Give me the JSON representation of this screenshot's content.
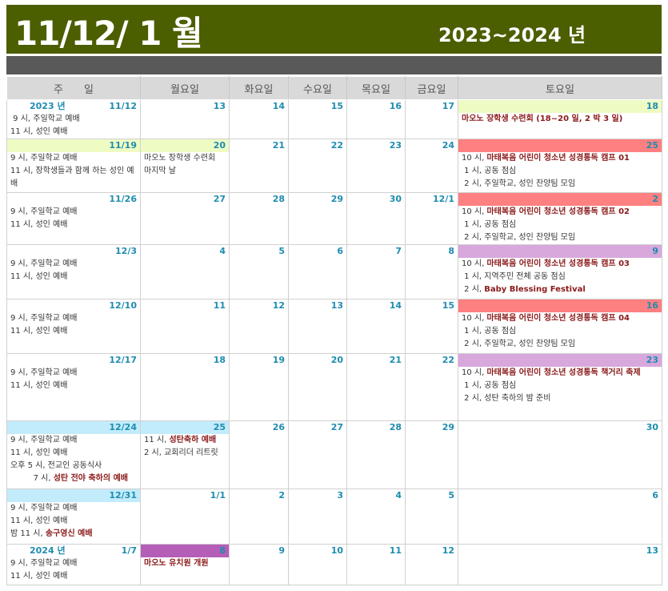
{
  "header": {
    "title": "11/12/ 1 월",
    "years": "2023~2024 년"
  },
  "colors": {
    "title_bg": "#4b5e00",
    "bar": "#595959",
    "date": "#1f8cb0",
    "event": "#8b1a1a",
    "yellow": "#eefcc4",
    "red": "#ff8080",
    "purple": "#d8a8dc",
    "blue": "#c2ecfb",
    "magenta": "#b45eb8"
  },
  "days": [
    "주　　일",
    "월요일",
    "화요일",
    "수요일",
    "목요일",
    "금요일",
    "토요일"
  ],
  "weeks": [
    {
      "h": 46,
      "cells": [
        {
          "date": "11/12",
          "label": "2023 년",
          "lines": [
            {
              "pre": " 9 시, 주일학교 예배"
            },
            {
              "pre": "11 시, 성인 예배"
            }
          ]
        },
        {
          "date": "13"
        },
        {
          "date": "14"
        },
        {
          "date": "15"
        },
        {
          "date": "16"
        },
        {
          "date": "17"
        },
        {
          "date": "18",
          "hl": "yellow",
          "lines": [
            {
              "pre": "",
              "em": "마오노 장학생 수련회 (18~20 일, 2 박 3 일)"
            }
          ]
        }
      ]
    },
    {
      "h": 67,
      "cells": [
        {
          "date": "11/19",
          "hl": "yellow",
          "lines": [
            {
              "pre": "9 시, 주일학교 예배"
            },
            {
              "pre": "11 시, 장학생들과 함께 하는 성인 예배",
              "wrap": true
            }
          ]
        },
        {
          "date": "20",
          "hl": "yellow",
          "lines": [
            {
              "pre": "마오노 장학생 수련회"
            },
            {
              "pre": "마지막 날"
            }
          ]
        },
        {
          "date": "21"
        },
        {
          "date": "22"
        },
        {
          "date": "23"
        },
        {
          "date": "24"
        },
        {
          "date": "25",
          "hl": "red",
          "lines": [
            {
              "pre": "10 시, ",
              "em": "마태복음 어린이 청소년 성경통독 캠프 01"
            },
            {
              "pre": " 1 시, 공동 점심"
            },
            {
              "pre": " 2 시, 주일학교, 성인 찬양팀 모임"
            }
          ]
        }
      ]
    },
    {
      "h": 62,
      "cells": [
        {
          "date": "11/26",
          "lines": [
            {
              "pre": "9 시, 주일학교 예배"
            },
            {
              "pre": "11 시, 성인 예배"
            }
          ]
        },
        {
          "date": "27"
        },
        {
          "date": "28"
        },
        {
          "date": "29"
        },
        {
          "date": "30"
        },
        {
          "date": "12/1"
        },
        {
          "date": "2",
          "hl": "red",
          "lines": [
            {
              "pre": "10 시, ",
              "em": "마태복음 어린이 청소년 성경통독 캠프 02"
            },
            {
              "pre": " 1 시, 공동 점심"
            },
            {
              "pre": " 2 시, 주일학교, 성인 찬양팀 모임"
            }
          ]
        }
      ]
    },
    {
      "h": 68,
      "cells": [
        {
          "date": "12/3",
          "lines": [
            {
              "pre": "9 시, 주일학교 예배"
            },
            {
              "pre": "11 시, 성인 예배"
            }
          ]
        },
        {
          "date": "4"
        },
        {
          "date": "5"
        },
        {
          "date": "6"
        },
        {
          "date": "7"
        },
        {
          "date": "8"
        },
        {
          "date": "9",
          "hl": "purple",
          "lines": [
            {
              "pre": "10 시, ",
              "em": "마태복음 어린이 청소년 성경통독 캠프 03"
            },
            {
              "pre": " 1 시, 지역주민 전체 공동 점심"
            },
            {
              "pre": " 2 시, ",
              "em": "Baby Blessing Festival"
            }
          ]
        }
      ]
    },
    {
      "h": 68,
      "cells": [
        {
          "date": "12/10",
          "lines": [
            {
              "pre": "9 시, 주일학교 예배"
            },
            {
              "pre": "11 시, 성인 예배"
            }
          ]
        },
        {
          "date": "11"
        },
        {
          "date": "12"
        },
        {
          "date": "13"
        },
        {
          "date": "14"
        },
        {
          "date": "15"
        },
        {
          "date": "16",
          "hl": "red",
          "lines": [
            {
              "pre": "10 시, ",
              "em": "마태복음 어린이 청소년 성경통독 캠프 04"
            },
            {
              "pre": " 1 시, 공동 점심"
            },
            {
              "pre": " 2 시, 주일학교, 성인 찬양팀 모임"
            }
          ]
        }
      ]
    },
    {
      "h": 84,
      "cells": [
        {
          "date": "12/17",
          "lines": [
            {
              "pre": "9 시, 주일학교 예배"
            },
            {
              "pre": "11 시, 성인 예배"
            }
          ]
        },
        {
          "date": "18"
        },
        {
          "date": "19"
        },
        {
          "date": "20"
        },
        {
          "date": "21"
        },
        {
          "date": "22"
        },
        {
          "date": "23",
          "hl": "purple",
          "lines": [
            {
              "pre": "10 시, ",
              "em": "마태복음 어린이 청소년 성경통독 책거리 축제"
            },
            {
              "pre": " 1 시, 공동 점심"
            },
            {
              "pre": " 2 시, 성탄 축하의 밤 준비"
            }
          ]
        }
      ]
    },
    {
      "h": 85,
      "cells": [
        {
          "date": "12/24",
          "hl": "blue",
          "lines": [
            {
              "pre": "9 시, 주일학교 예배"
            },
            {
              "pre": "11 시, 성인 예배"
            },
            {
              "pre": "오후 5 시, 전교인 공동식사"
            },
            {
              "pre": "         7 시, ",
              "em": "성탄 전야 축하의 예배"
            }
          ]
        },
        {
          "date": "25",
          "hl": "blue",
          "lines": [
            {
              "pre": "11 시, ",
              "em": "성탄축하 예배"
            },
            {
              "pre": "2 시, 교회리더 리트릿"
            }
          ]
        },
        {
          "date": "26"
        },
        {
          "date": "27"
        },
        {
          "date": "28"
        },
        {
          "date": "29"
        },
        {
          "date": "30"
        }
      ]
    },
    {
      "h": 69,
      "cells": [
        {
          "date": "12/31",
          "hl": "blue",
          "lines": [
            {
              "pre": "9 시, 주일학교 예배"
            },
            {
              "pre": "11 시, 성인 예배"
            },
            {
              "pre": "밤 11 시, ",
              "em": "송구영신 예배"
            }
          ]
        },
        {
          "date": "1/1"
        },
        {
          "date": "2"
        },
        {
          "date": "3"
        },
        {
          "date": "4"
        },
        {
          "date": "5"
        },
        {
          "date": "6"
        }
      ]
    },
    {
      "h": 51,
      "cells": [
        {
          "date": "1/7",
          "label": "2024 년",
          "lines": [
            {
              "pre": "9 시, 주일학교 예배"
            },
            {
              "pre": "11 시, 성인 예배"
            }
          ]
        },
        {
          "date": "8",
          "hl": "magenta",
          "lines": [
            {
              "pre": "",
              "em": "마오노 유치원 개원"
            }
          ]
        },
        {
          "date": "9"
        },
        {
          "date": "10"
        },
        {
          "date": "11"
        },
        {
          "date": "12"
        },
        {
          "date": "13"
        }
      ]
    }
  ]
}
